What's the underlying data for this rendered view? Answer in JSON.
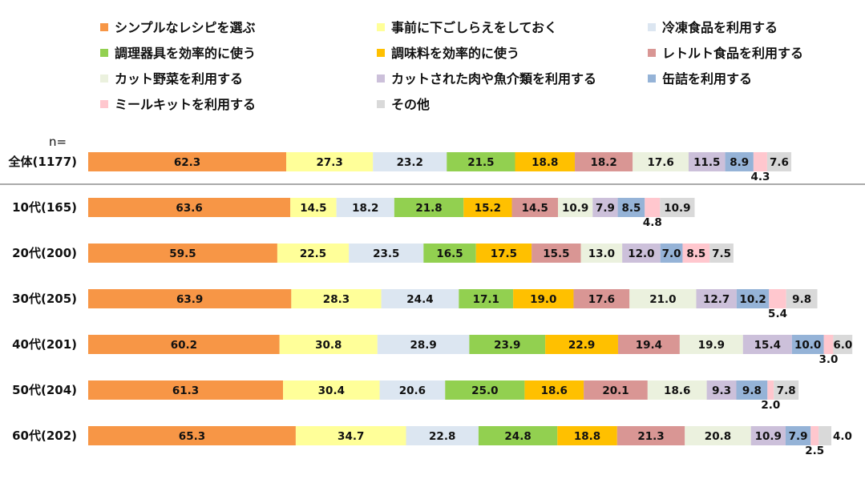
{
  "chart_data": {
    "type": "bar",
    "orientation": "horizontal",
    "stacked": true,
    "n_label": "n=",
    "categories": [
      "全体(1177)",
      "10代(165)",
      "20代(200)",
      "30代(205)",
      "40代(201)",
      "50代(204)",
      "60代(202)"
    ],
    "series": [
      {
        "name": "シンプルなレシピを選ぶ",
        "color": "#F79646",
        "values": [
          62.3,
          63.6,
          59.5,
          63.9,
          60.2,
          61.3,
          65.3
        ]
      },
      {
        "name": "事前に下ごしらえをしておく",
        "color": "#FFFF99",
        "values": [
          27.3,
          14.5,
          22.5,
          28.3,
          30.8,
          30.4,
          34.7
        ]
      },
      {
        "name": "冷凍食品を利用する",
        "color": "#DCE6F1",
        "values": [
          23.2,
          18.2,
          23.5,
          24.4,
          28.9,
          20.6,
          22.8
        ]
      },
      {
        "name": "調理器具を効率的に使う",
        "color": "#92D050",
        "values": [
          21.5,
          21.8,
          16.5,
          17.1,
          23.9,
          25.0,
          24.8
        ]
      },
      {
        "name": "調味料を効率的に使う",
        "color": "#FFC000",
        "values": [
          18.8,
          15.2,
          17.5,
          19.0,
          22.9,
          18.6,
          18.8
        ]
      },
      {
        "name": "レトルト食品を利用する",
        "color": "#D99694",
        "values": [
          18.2,
          14.5,
          15.5,
          17.6,
          19.4,
          20.1,
          21.3
        ]
      },
      {
        "name": "カット野菜を利用する",
        "color": "#EBF1DE",
        "values": [
          17.6,
          10.9,
          13.0,
          21.0,
          19.9,
          18.6,
          20.8
        ]
      },
      {
        "name": "カットされた肉や魚介類を利用する",
        "color": "#CCC0DA",
        "values": [
          11.5,
          7.9,
          12.0,
          12.7,
          15.4,
          9.3,
          10.9
        ]
      },
      {
        "name": "缶詰を利用する",
        "color": "#95B3D7",
        "values": [
          8.9,
          8.5,
          7.0,
          10.2,
          10.0,
          9.8,
          7.9
        ]
      },
      {
        "name": "ミールキットを利用する",
        "color": "#FFC7CE",
        "values": [
          4.3,
          4.8,
          8.5,
          5.4,
          3.0,
          2.0,
          2.5
        ]
      },
      {
        "name": "その他",
        "color": "#D9D9D9",
        "values": [
          7.6,
          10.9,
          7.5,
          9.8,
          6.0,
          7.8,
          4.0
        ]
      }
    ],
    "legend_position": "top",
    "grid": false
  }
}
